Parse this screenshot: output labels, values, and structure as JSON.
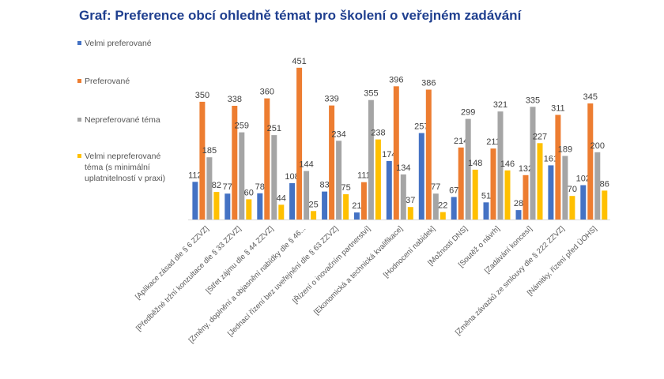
{
  "title": "Graf: Preference obcí ohledně témat pro školení o veřejném zadávání",
  "legend": [
    {
      "label": "Velmi preferované",
      "color": "#4472c4"
    },
    {
      "label": "Preferované",
      "color": "#ed7d31"
    },
    {
      "label": "Nepreferované téma",
      "color": "#a5a5a5"
    },
    {
      "label": "Velmi nepreferované téma (s minimální uplatnitelností v praxi)",
      "color": "#ffc000"
    }
  ],
  "chart_data": {
    "type": "bar",
    "title": "Graf: Preference obcí ohledně témat pro školení o veřejném zadávání",
    "categories": [
      "[Aplikace zásad dle § 6 ZZVZ]",
      "[Předběžné tržní konzultace dle § 33 ZZVZ]",
      "[Střet zájmu dle § 44 ZZVZ]",
      "[Změny, doplnění a objasnění nabídky dle § 46...",
      "[Jednací řízení bez uveřejnění dle § 63 ZZVZ]",
      "[Řízení o inovačním partnerství]",
      "[Ekonomická a technická kvalifikace]",
      "[Hodnocení nabídek]",
      "[Možnosti DNS]",
      "[Soutěž o návrh]",
      "[Zadávání koncesí]",
      "[Změna závazků ze smlouvy dle § 222 ZZVZ]",
      "[Námitky, řízení před ÚOHS]"
    ],
    "series": [
      {
        "name": "Velmi preferované",
        "color": "#4472c4",
        "values": [
          112,
          77,
          78,
          108,
          83,
          21,
          174,
          257,
          67,
          51,
          28,
          161,
          102
        ]
      },
      {
        "name": "Preferované",
        "color": "#ed7d31",
        "values": [
          350,
          338,
          360,
          451,
          339,
          111,
          396,
          386,
          214,
          211,
          132,
          311,
          345
        ]
      },
      {
        "name": "Nepreferované téma",
        "color": "#a5a5a5",
        "values": [
          185,
          259,
          251,
          144,
          234,
          355,
          134,
          77,
          299,
          321,
          335,
          189,
          200
        ]
      },
      {
        "name": "Velmi nepreferované téma (s minimální uplatnitelností v praxi)",
        "color": "#ffc000",
        "values": [
          82,
          60,
          44,
          25,
          75,
          238,
          37,
          22,
          148,
          146,
          227,
          70,
          86
        ]
      }
    ],
    "ylim": [
      0,
      460
    ],
    "grid": false,
    "legend_position": "left"
  }
}
